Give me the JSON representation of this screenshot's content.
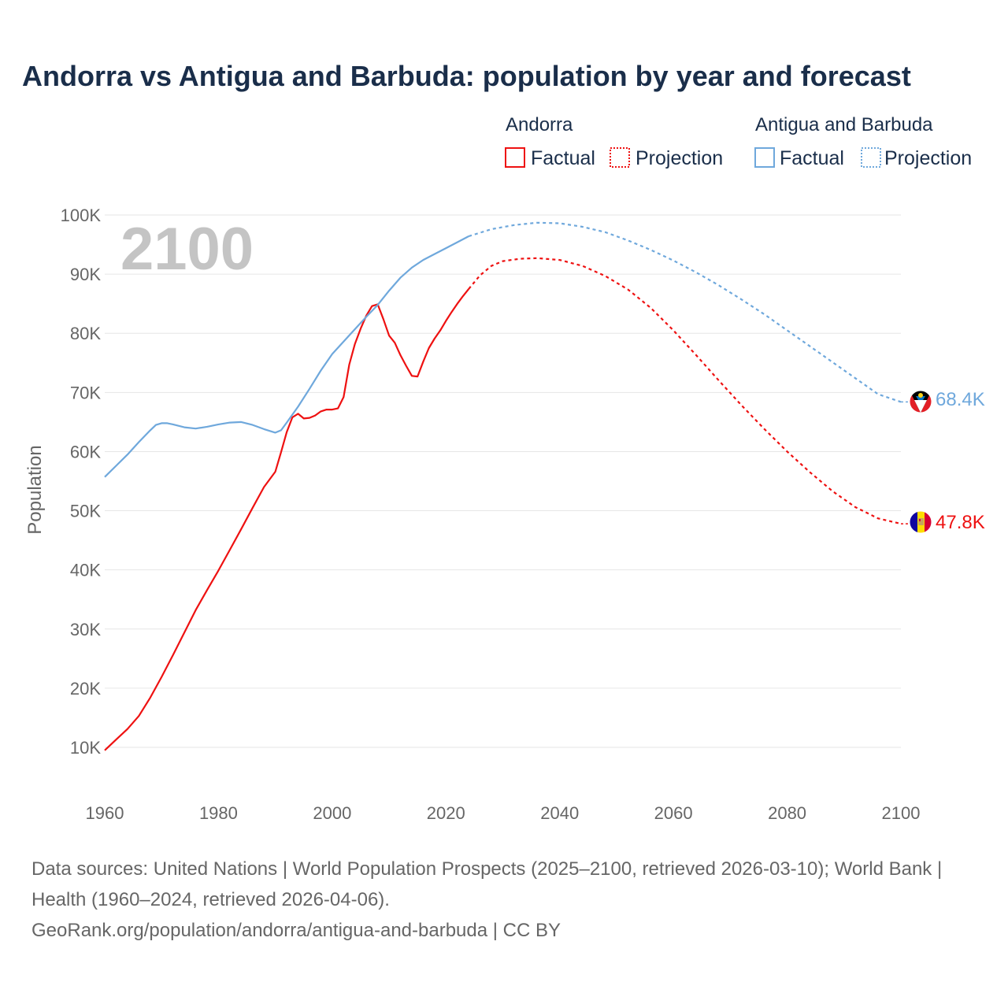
{
  "chart_data": {
    "type": "line",
    "title": "Andorra vs Antigua and Barbuda: population by year and forecast",
    "ylabel": "Population",
    "xlabel": "",
    "xlim": [
      1960,
      2100
    ],
    "ylim": [
      5000,
      100000
    ],
    "x_ticks": [
      1960,
      1980,
      2000,
      2020,
      2040,
      2060,
      2080,
      2100
    ],
    "x_tick_labels": [
      "1960",
      "1980",
      "2000",
      "2020",
      "2040",
      "2060",
      "2080",
      "2100"
    ],
    "y_ticks": [
      10000,
      20000,
      30000,
      40000,
      50000,
      60000,
      70000,
      80000,
      90000,
      100000
    ],
    "y_tick_labels": [
      "10K",
      "20K",
      "30K",
      "40K",
      "50K",
      "60K",
      "70K",
      "80K",
      "90K",
      "100K"
    ],
    "current_year_label": "2100",
    "legend": {
      "factual_label": "Factual",
      "projection_label": "Projection"
    },
    "series": [
      {
        "name": "Andorra",
        "color": "#ee1111",
        "end_value_label": "47.8K",
        "flag_icon": "andorra-flag-icon",
        "factual": [
          [
            1960,
            9500
          ],
          [
            1962,
            11300
          ],
          [
            1964,
            13100
          ],
          [
            1966,
            15300
          ],
          [
            1968,
            18400
          ],
          [
            1970,
            21900
          ],
          [
            1972,
            25600
          ],
          [
            1974,
            29400
          ],
          [
            1976,
            33200
          ],
          [
            1978,
            36600
          ],
          [
            1980,
            39900
          ],
          [
            1982,
            43400
          ],
          [
            1984,
            46900
          ],
          [
            1986,
            50500
          ],
          [
            1988,
            54000
          ],
          [
            1990,
            56600
          ],
          [
            1991,
            59900
          ],
          [
            1992,
            63300
          ],
          [
            1993,
            65800
          ],
          [
            1994,
            66400
          ],
          [
            1995,
            65600
          ],
          [
            1996,
            65700
          ],
          [
            1997,
            66100
          ],
          [
            1998,
            66800
          ],
          [
            1999,
            67100
          ],
          [
            2000,
            67100
          ],
          [
            2001,
            67300
          ],
          [
            2002,
            69200
          ],
          [
            2003,
            74700
          ],
          [
            2004,
            78200
          ],
          [
            2005,
            80800
          ],
          [
            2006,
            83000
          ],
          [
            2007,
            84600
          ],
          [
            2008,
            84900
          ],
          [
            2009,
            82400
          ],
          [
            2010,
            79600
          ],
          [
            2011,
            78400
          ],
          [
            2012,
            76300
          ],
          [
            2013,
            74500
          ],
          [
            2014,
            72800
          ],
          [
            2015,
            72700
          ],
          [
            2016,
            75200
          ],
          [
            2017,
            77500
          ],
          [
            2018,
            79100
          ],
          [
            2019,
            80500
          ],
          [
            2020,
            82100
          ],
          [
            2021,
            83600
          ],
          [
            2022,
            85000
          ],
          [
            2023,
            86300
          ],
          [
            2024,
            87500
          ]
        ],
        "projection": [
          [
            2024,
            87500
          ],
          [
            2026,
            89800
          ],
          [
            2028,
            91400
          ],
          [
            2030,
            92200
          ],
          [
            2033,
            92600
          ],
          [
            2036,
            92700
          ],
          [
            2040,
            92400
          ],
          [
            2044,
            91400
          ],
          [
            2048,
            89700
          ],
          [
            2052,
            87400
          ],
          [
            2056,
            84300
          ],
          [
            2060,
            80500
          ],
          [
            2064,
            76300
          ],
          [
            2068,
            72000
          ],
          [
            2072,
            67800
          ],
          [
            2076,
            63800
          ],
          [
            2080,
            60000
          ],
          [
            2084,
            56500
          ],
          [
            2088,
            53300
          ],
          [
            2092,
            50600
          ],
          [
            2096,
            48700
          ],
          [
            2100,
            47800
          ]
        ]
      },
      {
        "name": "Antigua and Barbuda",
        "color": "#6fa8dc",
        "end_value_label": "68.4K",
        "flag_icon": "antigua-and-barbuda-flag-icon",
        "factual": [
          [
            1960,
            55700
          ],
          [
            1962,
            57600
          ],
          [
            1964,
            59500
          ],
          [
            1966,
            61600
          ],
          [
            1968,
            63600
          ],
          [
            1969,
            64500
          ],
          [
            1970,
            64800
          ],
          [
            1971,
            64800
          ],
          [
            1972,
            64600
          ],
          [
            1974,
            64100
          ],
          [
            1976,
            63900
          ],
          [
            1978,
            64200
          ],
          [
            1980,
            64600
          ],
          [
            1982,
            64900
          ],
          [
            1984,
            65000
          ],
          [
            1986,
            64500
          ],
          [
            1988,
            63800
          ],
          [
            1990,
            63200
          ],
          [
            1991,
            63600
          ],
          [
            1992,
            64900
          ],
          [
            1994,
            67600
          ],
          [
            1996,
            70600
          ],
          [
            1998,
            73700
          ],
          [
            2000,
            76500
          ],
          [
            2002,
            78600
          ],
          [
            2004,
            80700
          ],
          [
            2006,
            82800
          ],
          [
            2008,
            84800
          ],
          [
            2010,
            87200
          ],
          [
            2012,
            89400
          ],
          [
            2014,
            91100
          ],
          [
            2016,
            92400
          ],
          [
            2018,
            93400
          ],
          [
            2020,
            94400
          ],
          [
            2022,
            95400
          ],
          [
            2024,
            96400
          ]
        ],
        "projection": [
          [
            2024,
            96400
          ],
          [
            2028,
            97600
          ],
          [
            2032,
            98300
          ],
          [
            2036,
            98700
          ],
          [
            2040,
            98600
          ],
          [
            2044,
            98000
          ],
          [
            2048,
            97100
          ],
          [
            2052,
            95700
          ],
          [
            2056,
            94100
          ],
          [
            2060,
            92300
          ],
          [
            2064,
            90300
          ],
          [
            2068,
            88100
          ],
          [
            2072,
            85700
          ],
          [
            2076,
            83200
          ],
          [
            2080,
            80500
          ],
          [
            2084,
            77800
          ],
          [
            2088,
            75100
          ],
          [
            2092,
            72400
          ],
          [
            2096,
            69700
          ],
          [
            2100,
            68400
          ]
        ]
      }
    ]
  },
  "source": {
    "line1": "Data sources: United Nations | World Population Prospects (2025–2100, retrieved 2026-03-10); World Bank | Health (1960–2024, retrieved 2026-04-06).",
    "line2": "GeoRank.org/population/andorra/antigua-and-barbuda | CC BY"
  }
}
